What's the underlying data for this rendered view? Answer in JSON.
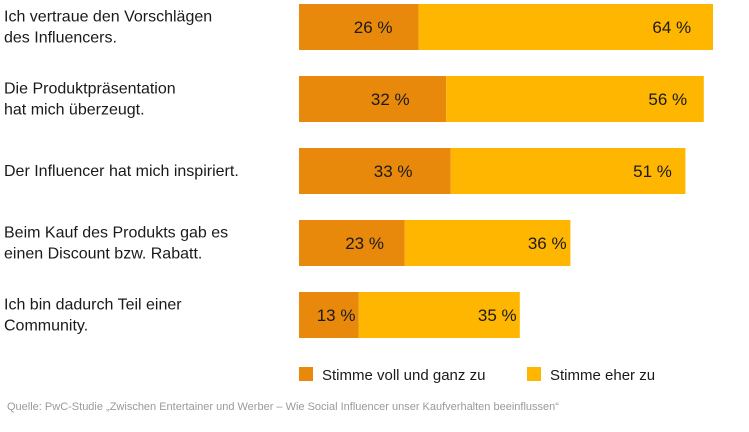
{
  "chart_data": {
    "type": "bar",
    "orientation": "horizontal",
    "stacked": true,
    "categories": [
      [
        "Ich vertraue den Vorschlägen",
        "des Influencers."
      ],
      [
        "Die Produktpräsentation",
        "hat mich überzeugt."
      ],
      [
        "Der Influencer hat mich inspiriert."
      ],
      [
        "Beim Kauf des Produkts gab es",
        "einen Discount bzw. Rabatt."
      ],
      [
        "Ich bin dadurch Teil einer",
        "Community."
      ]
    ],
    "series": [
      {
        "name": "Stimme voll und ganz zu",
        "color": "#e8890c",
        "values": [
          26,
          32,
          33,
          23,
          13
        ]
      },
      {
        "name": "Stimme eher zu",
        "color": "#ffb600",
        "values": [
          64,
          56,
          51,
          36,
          35
        ]
      }
    ],
    "value_suffix": " %",
    "xlim": [
      0,
      90
    ],
    "grid": false,
    "legend_position": "bottom-right"
  },
  "source": "Quelle: PwC-Studie „Zwischen Entertainer und Werber – Wie Social Influencer unser Kaufverhalten beeinflussen“"
}
